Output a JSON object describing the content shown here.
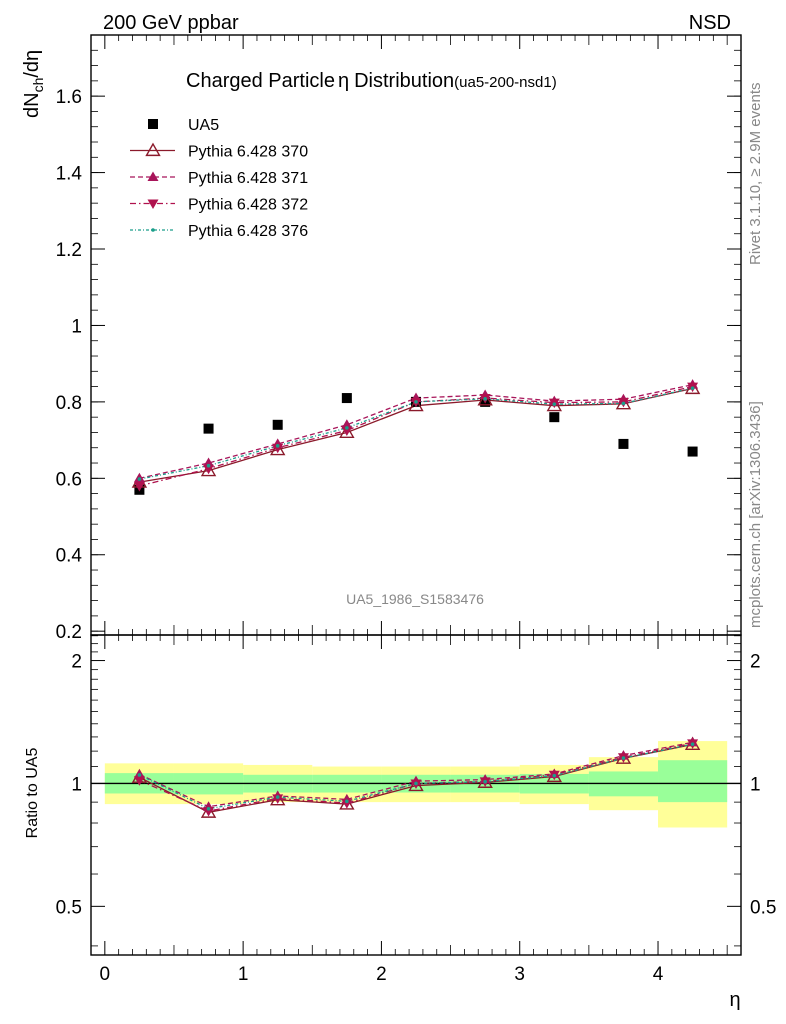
{
  "header": {
    "left": "200 GeV ppbar",
    "right": "NSD"
  },
  "side": {
    "rivet": "Rivet 3.1.10, ≥ 2.9M events",
    "mcplots": "mcplots.cern.ch [arXiv:1306.3436]"
  },
  "chart_data": [
    {
      "type": "scatter",
      "title": "Charged Particle",
      "title_symbol": "η",
      "title_suffix": "Distribution",
      "subtitle": "(ua5-200-nsd1)",
      "ylabel_main": "dN",
      "ylabel_sub": "ch",
      "ylabel_rest": "/dη",
      "watermark": "UA5_1986_S1583476",
      "xlim": [
        -0.1,
        4.6
      ],
      "ylim": [
        0.19,
        1.76
      ],
      "yticks": [
        "0.2",
        "0.4",
        "0.6",
        "0.8",
        "1",
        "1.2",
        "1.4",
        "1.6"
      ],
      "grid": false,
      "legend_position": "top-left",
      "x": [
        0.25,
        0.75,
        1.25,
        1.75,
        2.25,
        2.75,
        3.25,
        3.75,
        4.25
      ],
      "series": [
        {
          "name": "UA5",
          "marker": "square",
          "color": "#000000",
          "values": [
            0.57,
            0.73,
            0.74,
            0.81,
            0.8,
            0.8,
            0.76,
            0.69,
            0.67
          ]
        },
        {
          "name": "Pythia 6.428 370",
          "marker": "triangle-open",
          "color": "#8b1a2b",
          "line": "solid",
          "values": [
            0.59,
            0.62,
            0.675,
            0.72,
            0.79,
            0.805,
            0.79,
            0.795,
            0.835
          ]
        },
        {
          "name": "Pythia 6.428 371",
          "marker": "triangle-up",
          "color": "#a8155a",
          "line": "dashed",
          "values": [
            0.6,
            0.64,
            0.69,
            0.74,
            0.81,
            0.818,
            0.802,
            0.807,
            0.845
          ]
        },
        {
          "name": "Pythia 6.428 372",
          "marker": "triangle-down",
          "color": "#b0124e",
          "line": "dashdot",
          "values": [
            0.58,
            0.625,
            0.68,
            0.725,
            0.8,
            0.81,
            0.798,
            0.8,
            0.84
          ]
        },
        {
          "name": "Pythia 6.428 376",
          "marker": "dot",
          "color": "#1a9e8a",
          "line": "dashdotted",
          "values": [
            0.598,
            0.633,
            0.685,
            0.732,
            0.8,
            0.808,
            0.794,
            0.796,
            0.836
          ]
        }
      ]
    },
    {
      "type": "line",
      "ylabel": "Ratio to UA5",
      "xlabel": "η",
      "xlim": [
        -0.1,
        4.6
      ],
      "ylim": [
        0.38,
        2.31
      ],
      "log_y": true,
      "xticks": [
        "0",
        "1",
        "2",
        "3",
        "4"
      ],
      "yticks": [
        "0.5",
        "1",
        "2"
      ],
      "x": [
        0.25,
        0.75,
        1.25,
        1.75,
        2.25,
        2.75,
        3.25,
        3.75,
        4.25
      ],
      "bands": {
        "yellow": {
          "color": "#ffff99",
          "ranges": [
            [
              0.89,
              1.12
            ],
            [
              0.89,
              1.12
            ],
            [
              0.9,
              1.11
            ],
            [
              0.9,
              1.1
            ],
            [
              0.9,
              1.1
            ],
            [
              0.9,
              1.1
            ],
            [
              0.89,
              1.11
            ],
            [
              0.86,
              1.16
            ],
            [
              0.78,
              1.27
            ]
          ]
        },
        "green": {
          "color": "#99ff99",
          "ranges": [
            [
              0.945,
              1.06
            ],
            [
              0.94,
              1.06
            ],
            [
              0.95,
              1.05
            ],
            [
              0.95,
              1.05
            ],
            [
              0.95,
              1.05
            ],
            [
              0.95,
              1.05
            ],
            [
              0.945,
              1.055
            ],
            [
              0.93,
              1.07
            ],
            [
              0.9,
              1.14
            ]
          ]
        }
      },
      "reference": 1,
      "series": [
        {
          "name": "Pythia 6.428 370",
          "marker": "triangle-open",
          "color": "#8b1a2b",
          "line": "solid",
          "values": [
            1.035,
            0.85,
            0.912,
            0.89,
            0.988,
            1.006,
            1.04,
            1.152,
            1.246
          ]
        },
        {
          "name": "Pythia 6.428 371",
          "marker": "triangle-up",
          "color": "#a8155a",
          "line": "dashed",
          "values": [
            1.053,
            0.877,
            0.932,
            0.914,
            1.013,
            1.022,
            1.055,
            1.17,
            1.261
          ]
        },
        {
          "name": "Pythia 6.428 372",
          "marker": "triangle-down",
          "color": "#b0124e",
          "line": "dashdot",
          "values": [
            1.018,
            0.856,
            0.919,
            0.895,
            1.0,
            1.012,
            1.05,
            1.159,
            1.254
          ]
        },
        {
          "name": "Pythia 6.428 376",
          "marker": "dot",
          "color": "#1a9e8a",
          "line": "dashdotted",
          "values": [
            1.049,
            0.867,
            0.926,
            0.904,
            1.0,
            1.01,
            1.045,
            1.154,
            1.248
          ]
        }
      ]
    }
  ]
}
